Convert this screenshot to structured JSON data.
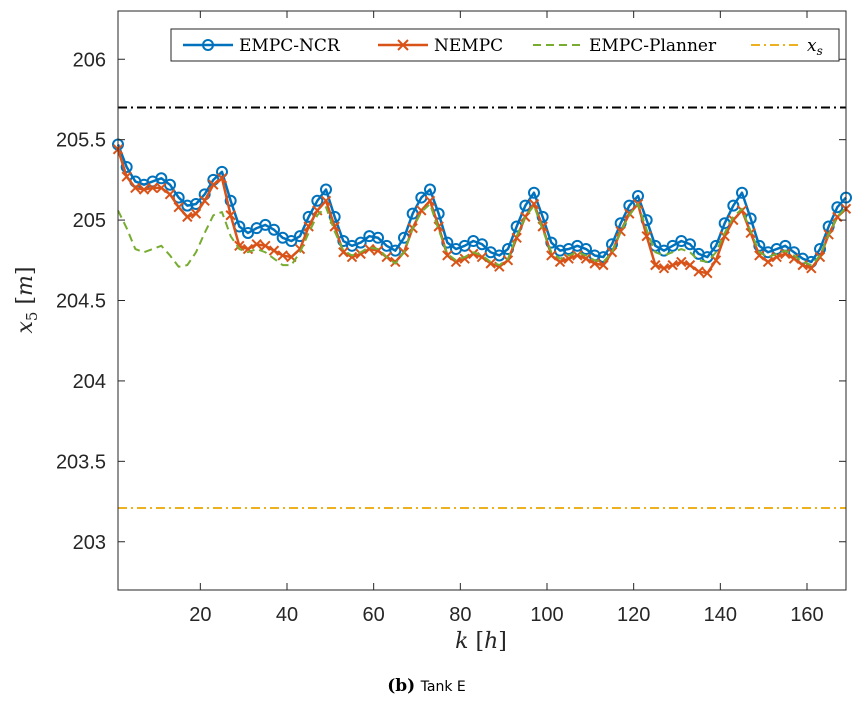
{
  "chart_data": {
    "type": "line",
    "xlabel": "k [h]",
    "ylabel": "x_5 [m]",
    "xlim": [
      1,
      169
    ],
    "ylim": [
      202.7,
      206.3
    ],
    "xticks": [
      20,
      40,
      60,
      80,
      100,
      120,
      140,
      160
    ],
    "yticks": [
      203,
      203.5,
      204,
      204.5,
      205,
      205.5,
      206
    ],
    "grid": false,
    "legend_position": "top-right",
    "legend": [
      "EMPC-NCR",
      "NEMPC",
      "EMPC-Planner",
      "x_s"
    ],
    "reference_lines": [
      {
        "name": "upper bound",
        "y": 205.7,
        "color": "#000000",
        "style": "dash-dot"
      },
      {
        "name": "x_s",
        "y": 203.21,
        "color": "#EDB120",
        "style": "dash-dot"
      }
    ],
    "series": [
      {
        "name": "EMPC-NCR",
        "color": "#0072BD",
        "marker": "circle",
        "x": [
          1,
          3,
          5,
          7,
          9,
          11,
          13,
          15,
          17,
          19,
          21,
          23,
          25,
          27,
          29,
          31,
          33,
          35,
          37,
          39,
          41,
          43,
          45,
          47,
          49,
          51,
          53,
          55,
          57,
          59,
          61,
          63,
          65,
          67,
          69,
          71,
          73,
          75,
          77,
          79,
          81,
          83,
          85,
          87,
          89,
          91,
          93,
          95,
          97,
          99,
          101,
          103,
          105,
          107,
          109,
          111,
          113,
          115,
          117,
          119,
          121,
          123,
          125,
          127,
          129,
          131,
          133,
          135,
          137,
          139,
          141,
          143,
          145,
          147,
          149,
          151,
          153,
          155,
          157,
          159,
          161,
          163,
          165,
          167,
          169
        ],
        "y": [
          205.47,
          205.33,
          205.24,
          205.22,
          205.24,
          205.26,
          205.22,
          205.14,
          205.09,
          205.1,
          205.16,
          205.25,
          205.3,
          205.12,
          204.96,
          204.92,
          204.95,
          204.97,
          204.94,
          204.89,
          204.87,
          204.9,
          205.02,
          205.12,
          205.19,
          205.02,
          204.87,
          204.84,
          204.86,
          204.9,
          204.89,
          204.84,
          204.81,
          204.89,
          205.04,
          205.14,
          205.19,
          205.04,
          204.86,
          204.82,
          204.84,
          204.87,
          204.85,
          204.8,
          204.78,
          204.82,
          204.96,
          205.09,
          205.17,
          205.02,
          204.86,
          204.81,
          204.82,
          204.84,
          204.82,
          204.78,
          204.77,
          204.85,
          204.98,
          205.09,
          205.15,
          205.0,
          204.84,
          204.81,
          204.84,
          204.87,
          204.85,
          204.79,
          204.77,
          204.84,
          204.98,
          205.09,
          205.17,
          205.01,
          204.84,
          204.8,
          204.82,
          204.84,
          204.8,
          204.76,
          204.74,
          204.82,
          204.96,
          205.08,
          205.14
        ]
      },
      {
        "name": "NEMPC",
        "color": "#D95319",
        "marker": "x",
        "x": [
          1,
          3,
          5,
          7,
          9,
          11,
          13,
          15,
          17,
          19,
          21,
          23,
          25,
          27,
          29,
          31,
          33,
          35,
          37,
          39,
          41,
          43,
          45,
          47,
          49,
          51,
          53,
          55,
          57,
          59,
          61,
          63,
          65,
          67,
          69,
          71,
          73,
          75,
          77,
          79,
          81,
          83,
          85,
          87,
          89,
          91,
          93,
          95,
          97,
          99,
          101,
          103,
          105,
          107,
          109,
          111,
          113,
          115,
          117,
          119,
          121,
          123,
          125,
          127,
          129,
          131,
          133,
          135,
          137,
          139,
          141,
          143,
          145,
          147,
          149,
          151,
          153,
          155,
          157,
          159,
          161,
          163,
          165,
          167,
          169
        ],
        "y": [
          205.44,
          205.27,
          205.2,
          205.19,
          205.2,
          205.2,
          205.16,
          205.08,
          205.02,
          205.04,
          205.12,
          205.22,
          205.26,
          205.03,
          204.84,
          204.82,
          204.85,
          204.84,
          204.81,
          204.78,
          204.77,
          204.82,
          204.96,
          205.06,
          205.12,
          204.96,
          204.8,
          204.77,
          204.79,
          204.82,
          204.81,
          204.77,
          204.74,
          204.8,
          204.95,
          205.06,
          205.12,
          204.96,
          204.78,
          204.74,
          204.76,
          204.79,
          204.77,
          204.73,
          204.71,
          204.75,
          204.89,
          205.02,
          205.1,
          204.96,
          204.78,
          204.74,
          204.76,
          204.78,
          204.76,
          204.73,
          204.72,
          204.8,
          204.93,
          205.04,
          205.1,
          204.9,
          204.72,
          204.7,
          204.72,
          204.74,
          204.72,
          204.68,
          204.67,
          204.75,
          204.9,
          205.0,
          205.06,
          204.92,
          204.78,
          204.74,
          204.77,
          204.79,
          204.76,
          204.72,
          204.7,
          204.77,
          204.91,
          205.02,
          205.07
        ]
      },
      {
        "name": "EMPC-Planner",
        "color": "#77AC30",
        "marker": "none",
        "style": "dashed",
        "x": [
          1,
          3,
          5,
          7,
          9,
          11,
          13,
          15,
          17,
          19,
          21,
          23,
          25,
          27,
          29,
          31,
          33,
          35,
          37,
          39,
          41,
          43,
          45,
          47,
          49,
          51,
          53,
          55,
          57,
          59,
          61,
          63,
          65,
          67,
          69,
          71,
          73,
          75,
          77,
          79,
          81,
          83,
          85,
          87,
          89,
          91,
          93,
          95,
          97,
          99,
          101,
          103,
          105,
          107,
          109,
          111,
          113,
          115,
          117,
          119,
          121,
          123,
          125,
          127,
          129,
          131,
          133,
          135,
          137,
          139,
          141,
          143,
          145,
          147,
          149,
          151,
          153,
          155,
          157,
          159,
          161,
          163,
          165,
          167,
          169
        ],
        "y": [
          205.06,
          204.95,
          204.82,
          204.8,
          204.82,
          204.84,
          204.78,
          204.71,
          204.72,
          204.8,
          204.92,
          205.03,
          205.05,
          204.9,
          204.82,
          204.8,
          204.82,
          204.8,
          204.76,
          204.72,
          204.72,
          204.8,
          204.92,
          205.03,
          205.08,
          204.93,
          204.81,
          204.78,
          204.8,
          204.83,
          204.82,
          204.77,
          204.73,
          204.8,
          204.95,
          205.05,
          205.1,
          204.94,
          204.79,
          204.75,
          204.77,
          204.8,
          204.78,
          204.74,
          204.72,
          204.76,
          204.9,
          205.02,
          205.09,
          204.94,
          204.8,
          204.76,
          204.78,
          204.8,
          204.78,
          204.75,
          204.74,
          204.8,
          204.93,
          205.03,
          205.1,
          204.94,
          204.8,
          204.78,
          204.8,
          204.82,
          204.8,
          204.75,
          204.74,
          204.8,
          204.92,
          205.02,
          205.07,
          204.93,
          204.8,
          204.77,
          204.79,
          204.81,
          204.78,
          204.74,
          204.72,
          204.78,
          204.91,
          205.02,
          205.08
        ]
      }
    ]
  },
  "caption": {
    "label": "(b)",
    "text": "Tank E"
  }
}
